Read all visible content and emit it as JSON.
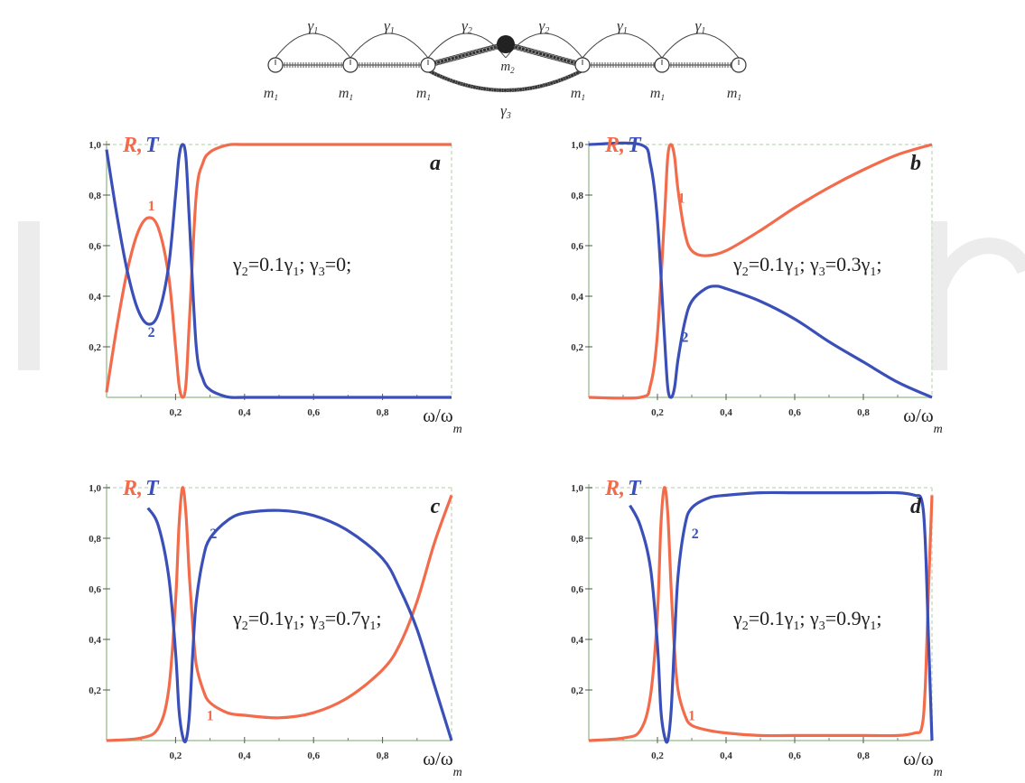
{
  "diagram": {
    "gamma1": "γ",
    "gamma1_sub": "1",
    "gamma2": "γ",
    "gamma2_sub": "2",
    "gamma3": "γ",
    "gamma3_sub": "3",
    "m1": "m",
    "m1_sub": "1",
    "m2": "m",
    "m2_sub": "2"
  },
  "colors": {
    "R": "#f26b4b",
    "T": "#3a4fb8",
    "axis": "#bcd4b4",
    "frame": "#d9e6d4"
  },
  "chart_data": [
    {
      "type": "line",
      "panel": "a",
      "xlabel_main": "ω/ω",
      "xlabel_sub": "m",
      "label_R": "R",
      "label_comma": ",",
      "label_T": "T",
      "annotation": "γ₂=0.1γ₁; γ₃=0;",
      "ann_parts": [
        "γ",
        "2",
        "=0.1γ",
        "1",
        "; γ",
        "3",
        "=0;"
      ],
      "xlim": [
        0,
        1
      ],
      "ylim": [
        0,
        1
      ],
      "xticks": [
        "0,2",
        "0,4",
        "0,6",
        "0,8"
      ],
      "yticks": [
        "1,0",
        "0,8",
        "0,6",
        "0,4",
        "0,2"
      ],
      "series": [
        {
          "name": "1",
          "key": "R",
          "x": [
            0,
            0.03,
            0.06,
            0.09,
            0.12,
            0.15,
            0.18,
            0.2,
            0.21,
            0.22,
            0.23,
            0.24,
            0.26,
            0.28,
            0.3,
            0.33,
            0.36,
            0.4,
            0.5,
            0.7,
            1.0
          ],
          "y": [
            0.02,
            0.28,
            0.5,
            0.65,
            0.71,
            0.67,
            0.48,
            0.2,
            0.05,
            0.0,
            0.05,
            0.3,
            0.8,
            0.93,
            0.97,
            0.99,
            1.0,
            1.0,
            1.0,
            1.0,
            1.0
          ]
        },
        {
          "name": "2",
          "key": "T",
          "x": [
            0,
            0.03,
            0.06,
            0.09,
            0.12,
            0.15,
            0.18,
            0.2,
            0.21,
            0.22,
            0.23,
            0.24,
            0.26,
            0.28,
            0.3,
            0.33,
            0.36,
            0.4,
            0.5,
            0.7,
            1.0
          ],
          "y": [
            0.98,
            0.72,
            0.5,
            0.35,
            0.29,
            0.33,
            0.52,
            0.8,
            0.95,
            1.0,
            0.95,
            0.7,
            0.2,
            0.07,
            0.03,
            0.01,
            0.0,
            0.0,
            0.0,
            0.0,
            0.0
          ]
        }
      ],
      "curve_labels": [
        {
          "text": "1",
          "x": 0.13,
          "y": 0.74,
          "key": "R"
        },
        {
          "text": "2",
          "x": 0.13,
          "y": 0.24,
          "key": "T"
        }
      ]
    },
    {
      "type": "line",
      "panel": "b",
      "xlabel_main": "ω/ω",
      "xlabel_sub": "m",
      "label_R": "R",
      "label_comma": ",",
      "label_T": "T",
      "annotation": "γ₂=0.1γ₁; γ₃=0.3γ₁;",
      "ann_parts": [
        "γ",
        "2",
        "=0.1γ",
        "1",
        "; γ",
        "3",
        "=0.3γ",
        "1",
        ";"
      ],
      "xlim": [
        0,
        1
      ],
      "ylim": [
        0,
        1
      ],
      "xticks": [
        "0,2",
        "0,4",
        "0,6",
        "0,8"
      ],
      "yticks": [
        "1,0",
        "0,8",
        "0,6",
        "0,4",
        "0,2"
      ],
      "series": [
        {
          "name": "1",
          "key": "R",
          "x": [
            0,
            0.15,
            0.18,
            0.2,
            0.22,
            0.23,
            0.24,
            0.25,
            0.26,
            0.28,
            0.3,
            0.34,
            0.4,
            0.5,
            0.6,
            0.7,
            0.8,
            0.9,
            1.0
          ],
          "y": [
            0.0,
            0.0,
            0.05,
            0.25,
            0.7,
            0.95,
            1.0,
            0.95,
            0.82,
            0.65,
            0.58,
            0.56,
            0.58,
            0.66,
            0.75,
            0.83,
            0.9,
            0.96,
            1.0
          ]
        },
        {
          "name": "2",
          "key": "T",
          "x": [
            0,
            0.15,
            0.18,
            0.2,
            0.22,
            0.23,
            0.24,
            0.25,
            0.26,
            0.28,
            0.3,
            0.34,
            0.37,
            0.4,
            0.5,
            0.6,
            0.7,
            0.8,
            0.9,
            1.0
          ],
          "y": [
            1.0,
            1.0,
            0.92,
            0.7,
            0.25,
            0.04,
            0.0,
            0.04,
            0.15,
            0.3,
            0.38,
            0.43,
            0.44,
            0.43,
            0.38,
            0.31,
            0.22,
            0.14,
            0.06,
            0.0
          ]
        }
      ],
      "curve_labels": [
        {
          "text": "1",
          "x": 0.27,
          "y": 0.77,
          "key": "R"
        },
        {
          "text": "2",
          "x": 0.28,
          "y": 0.22,
          "key": "T"
        }
      ]
    },
    {
      "type": "line",
      "panel": "c",
      "xlabel_main": "ω/ω",
      "xlabel_sub": "m",
      "label_R": "R",
      "label_comma": ",",
      "label_T": "T",
      "annotation": "γ₂=0.1γ₁; γ₃=0.7γ₁;",
      "ann_parts": [
        "γ",
        "2",
        "=0.1γ",
        "1",
        "; γ",
        "3",
        "=0.7γ",
        "1",
        ";"
      ],
      "xlim": [
        0,
        1
      ],
      "ylim": [
        0,
        1
      ],
      "xticks": [
        "0,2",
        "0,4",
        "0,6",
        "0,8"
      ],
      "yticks": [
        "1,0",
        "0,8",
        "0,6",
        "0,4",
        "0,2"
      ],
      "series": [
        {
          "name": "1",
          "key": "R",
          "x": [
            0,
            0.1,
            0.15,
            0.18,
            0.2,
            0.21,
            0.22,
            0.23,
            0.24,
            0.25,
            0.26,
            0.28,
            0.3,
            0.35,
            0.4,
            0.5,
            0.6,
            0.7,
            0.8,
            0.85,
            0.9,
            0.95,
            1.0
          ],
          "y": [
            0.0,
            0.01,
            0.05,
            0.2,
            0.55,
            0.85,
            1.0,
            0.9,
            0.65,
            0.45,
            0.3,
            0.2,
            0.15,
            0.11,
            0.1,
            0.09,
            0.11,
            0.17,
            0.28,
            0.38,
            0.55,
            0.78,
            0.97
          ]
        },
        {
          "name": "2",
          "key": "T",
          "x": [
            0.12,
            0.15,
            0.18,
            0.2,
            0.21,
            0.22,
            0.23,
            0.24,
            0.25,
            0.26,
            0.28,
            0.3,
            0.35,
            0.4,
            0.5,
            0.6,
            0.7,
            0.8,
            0.85,
            0.9,
            0.95,
            1.0
          ],
          "y": [
            0.92,
            0.85,
            0.65,
            0.35,
            0.12,
            0.02,
            0.0,
            0.1,
            0.35,
            0.55,
            0.72,
            0.8,
            0.87,
            0.9,
            0.91,
            0.89,
            0.83,
            0.72,
            0.6,
            0.44,
            0.22,
            0.0
          ]
        }
      ],
      "curve_labels": [
        {
          "text": "1",
          "x": 0.3,
          "y": 0.08,
          "key": "R"
        },
        {
          "text": "2",
          "x": 0.31,
          "y": 0.8,
          "key": "T"
        }
      ]
    },
    {
      "type": "line",
      "panel": "d",
      "xlabel_main": "ω/ω",
      "xlabel_sub": "m",
      "label_R": "R",
      "label_comma": ",",
      "label_T": "T",
      "annotation": "γ₂=0.1γ₁; γ₃=0.9γ₁;",
      "ann_parts": [
        "γ",
        "2",
        "=0.1γ",
        "1",
        "; γ",
        "3",
        "=0.9γ",
        "1",
        ";"
      ],
      "xlim": [
        0,
        1
      ],
      "ylim": [
        0,
        1
      ],
      "xticks": [
        "0,2",
        "0,4",
        "0,6",
        "0,8"
      ],
      "yticks": [
        "1,0",
        "0,8",
        "0,6",
        "0,4",
        "0,2"
      ],
      "series": [
        {
          "name": "1",
          "key": "R",
          "x": [
            0,
            0.1,
            0.15,
            0.18,
            0.2,
            0.21,
            0.22,
            0.23,
            0.24,
            0.25,
            0.26,
            0.28,
            0.3,
            0.35,
            0.4,
            0.5,
            0.6,
            0.7,
            0.8,
            0.9,
            0.95,
            0.97,
            0.98,
            0.99,
            1.0
          ],
          "y": [
            0.0,
            0.01,
            0.04,
            0.18,
            0.5,
            0.85,
            1.0,
            0.9,
            0.6,
            0.35,
            0.2,
            0.1,
            0.06,
            0.04,
            0.03,
            0.02,
            0.02,
            0.02,
            0.02,
            0.02,
            0.03,
            0.05,
            0.2,
            0.6,
            0.97
          ]
        },
        {
          "name": "2",
          "key": "T",
          "x": [
            0.12,
            0.15,
            0.18,
            0.2,
            0.21,
            0.22,
            0.23,
            0.24,
            0.25,
            0.26,
            0.28,
            0.3,
            0.35,
            0.4,
            0.5,
            0.6,
            0.7,
            0.8,
            0.9,
            0.95,
            0.97,
            0.98,
            0.99,
            1.0
          ],
          "y": [
            0.93,
            0.85,
            0.68,
            0.38,
            0.12,
            0.02,
            0.0,
            0.12,
            0.4,
            0.65,
            0.85,
            0.92,
            0.96,
            0.97,
            0.98,
            0.98,
            0.98,
            0.98,
            0.98,
            0.97,
            0.95,
            0.8,
            0.4,
            0.0
          ]
        }
      ],
      "curve_labels": [
        {
          "text": "1",
          "x": 0.3,
          "y": 0.08,
          "key": "R"
        },
        {
          "text": "2",
          "x": 0.31,
          "y": 0.8,
          "key": "T"
        }
      ]
    }
  ]
}
